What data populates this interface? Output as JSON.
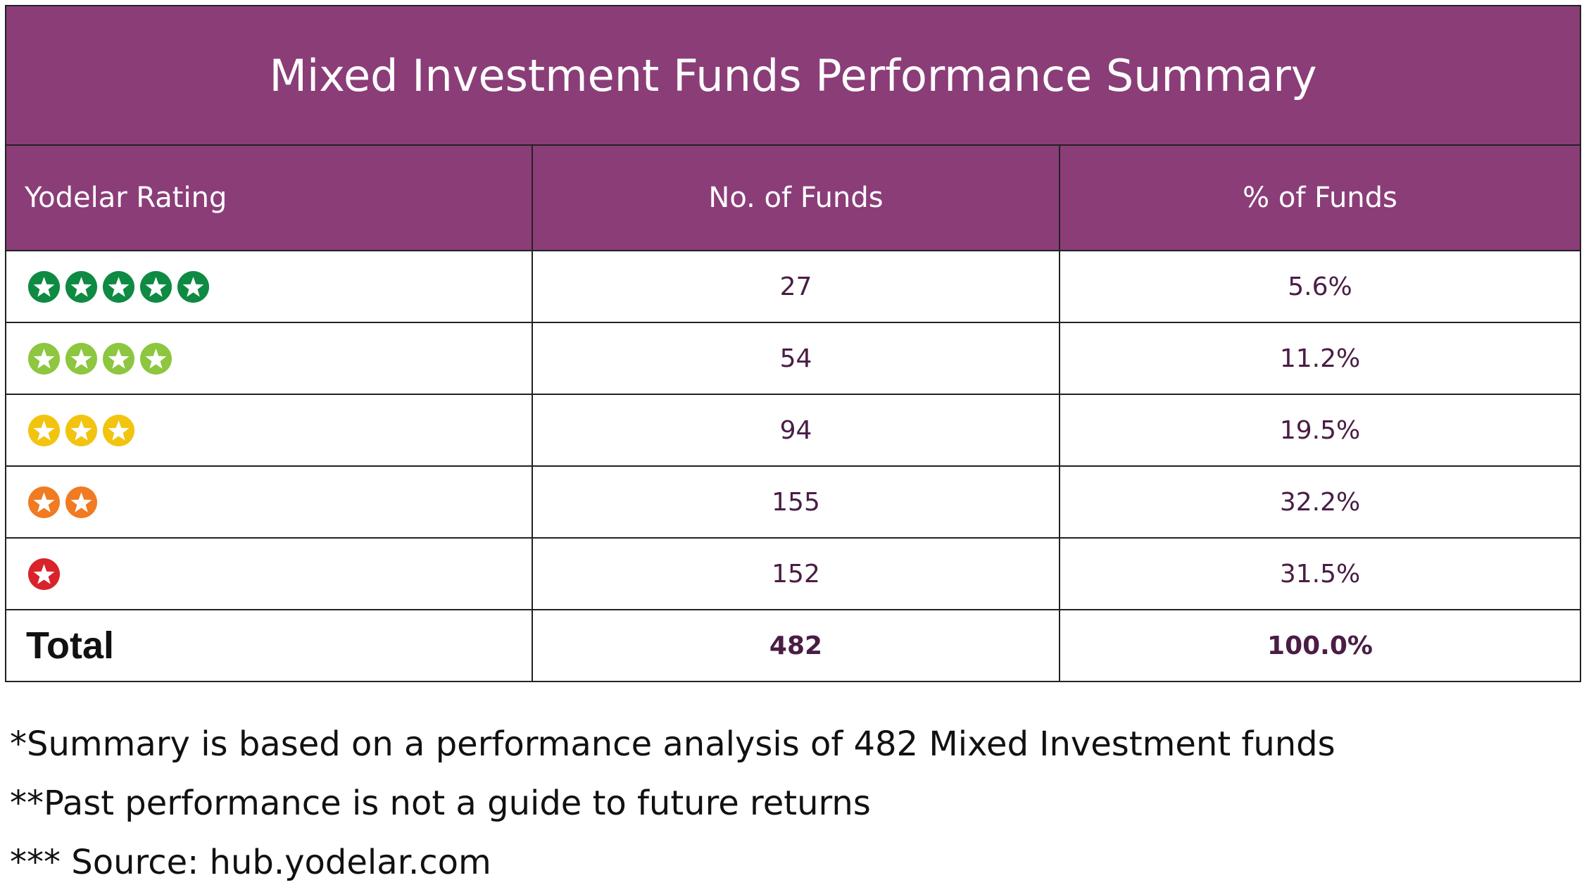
{
  "title": "Mixed Investment Funds Performance Summary",
  "headers": {
    "rating": "Yodelar Rating",
    "num_funds": "No. of Funds",
    "pct_funds": "% of Funds"
  },
  "rows": [
    {
      "stars": 5,
      "star_color": "#0e8a43",
      "num_funds": "27",
      "pct_funds": "5.6%"
    },
    {
      "stars": 4,
      "star_color": "#8dc63f",
      "num_funds": "54",
      "pct_funds": "11.2%"
    },
    {
      "stars": 3,
      "star_color": "#f2c40f",
      "num_funds": "94",
      "pct_funds": "19.5%"
    },
    {
      "stars": 2,
      "star_color": "#f07b22",
      "num_funds": "155",
      "pct_funds": "32.2%"
    },
    {
      "stars": 1,
      "star_color": "#d9232a",
      "num_funds": "152",
      "pct_funds": "31.5%"
    }
  ],
  "total": {
    "label": "Total",
    "num_funds": "482",
    "pct_funds": "100.0%"
  },
  "footnotes": [
    "*Summary is based on a performance analysis of 482 Mixed Investment funds",
    "**Past performance is not a guide to future returns",
    "*** Source: hub.yodelar.com"
  ],
  "colors": {
    "header_bg": "#8b3d78",
    "value_text": "#4a1d45"
  }
}
